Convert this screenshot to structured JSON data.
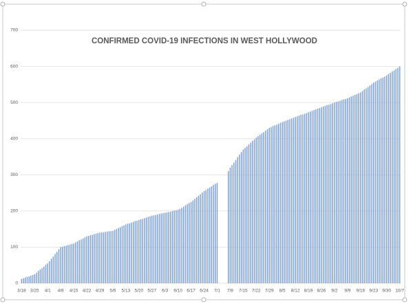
{
  "chart_data": {
    "type": "bar",
    "title": "CONFIRMED COVID-19 INFECTIONS IN WEST HOLLYWOOD",
    "categories": [
      "3/18",
      null,
      null,
      null,
      null,
      null,
      null,
      "3/25",
      null,
      null,
      null,
      null,
      null,
      null,
      "4/1",
      null,
      null,
      null,
      null,
      null,
      null,
      "4/8",
      null,
      null,
      null,
      null,
      null,
      null,
      "4/15",
      null,
      null,
      null,
      null,
      null,
      null,
      "4/22",
      null,
      null,
      null,
      null,
      null,
      null,
      "4/29",
      null,
      null,
      null,
      null,
      null,
      null,
      "5/6",
      null,
      null,
      null,
      null,
      null,
      null,
      "5/13",
      null,
      null,
      null,
      null,
      null,
      null,
      "5/20",
      null,
      null,
      null,
      null,
      null,
      null,
      "5/27",
      null,
      null,
      null,
      null,
      null,
      null,
      "6/3",
      null,
      null,
      null,
      null,
      null,
      null,
      "6/10",
      null,
      null,
      null,
      null,
      null,
      null,
      "6/17",
      null,
      null,
      null,
      null,
      null,
      null,
      "6/24",
      null,
      null,
      null,
      null,
      null,
      null,
      "7/1",
      null,
      null,
      null,
      null,
      null,
      null,
      "7/8",
      null,
      null,
      null,
      null,
      null,
      null,
      "7/15",
      null,
      null,
      null,
      null,
      null,
      null,
      "7/22",
      null,
      null,
      null,
      null,
      null,
      null,
      "7/29",
      null,
      null,
      null,
      null,
      null,
      null,
      "8/5",
      null,
      null,
      null,
      null,
      null,
      null,
      "8/12",
      null,
      null,
      null,
      null,
      null,
      null,
      "8/19",
      null,
      null,
      null,
      null,
      null,
      null,
      "8/26",
      null,
      null,
      null,
      null,
      null,
      null,
      "9/2",
      null,
      null,
      null,
      null,
      null,
      null,
      "9/9",
      null,
      null,
      null,
      null,
      null,
      null,
      "9/16",
      null,
      null,
      null,
      null,
      null,
      null,
      "9/23",
      null,
      null,
      null,
      null,
      null,
      null,
      "9/30",
      null,
      null,
      null,
      null,
      null,
      null,
      "10/7"
    ],
    "values": [
      12,
      14,
      16,
      18,
      19,
      21,
      23,
      25,
      29,
      34,
      38,
      42,
      46,
      51,
      55,
      61,
      68,
      74,
      81,
      87,
      94,
      100,
      101,
      103,
      104,
      106,
      107,
      109,
      110,
      113,
      116,
      119,
      121,
      124,
      127,
      130,
      131,
      133,
      134,
      136,
      137,
      139,
      140,
      141,
      141,
      142,
      143,
      144,
      144,
      145,
      148,
      150,
      153,
      155,
      158,
      160,
      163,
      165,
      166,
      168,
      170,
      172,
      173,
      175,
      177,
      178,
      180,
      182,
      184,
      185,
      187,
      188,
      189,
      190,
      192,
      193,
      194,
      195,
      196,
      197,
      198,
      200,
      201,
      202,
      203,
      206,
      209,
      212,
      216,
      219,
      222,
      225,
      229,
      234,
      238,
      242,
      246,
      251,
      255,
      258,
      262,
      265,
      268,
      272,
      275,
      278,
      null,
      null,
      null,
      null,
      null,
      310,
      320,
      327,
      334,
      341,
      349,
      356,
      363,
      370,
      375,
      379,
      384,
      389,
      394,
      398,
      403,
      407,
      411,
      415,
      418,
      422,
      426,
      430,
      432,
      435,
      437,
      439,
      441,
      444,
      446,
      448,
      450,
      452,
      454,
      456,
      458,
      460,
      462,
      464,
      466,
      467,
      469,
      471,
      473,
      475,
      477,
      479,
      481,
      483,
      485,
      487,
      489,
      491,
      493,
      494,
      496,
      498,
      500,
      502,
      503,
      505,
      507,
      509,
      510,
      512,
      514,
      517,
      519,
      521,
      523,
      526,
      528,
      532,
      536,
      539,
      543,
      547,
      551,
      555,
      558,
      561,
      564,
      567,
      569,
      572,
      575,
      579,
      582,
      586,
      589,
      593,
      596,
      600
    ],
    "color": "#7ea1d6",
    "ylim": [
      0,
      700
    ],
    "yticks": [
      0,
      100,
      200,
      300,
      400,
      500,
      600,
      700
    ],
    "grid": true
  }
}
